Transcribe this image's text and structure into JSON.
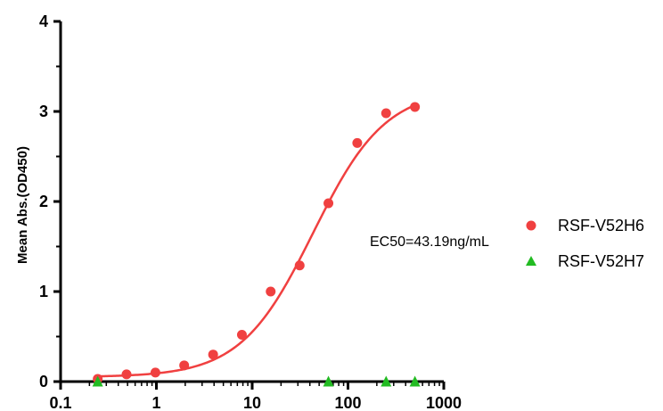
{
  "chart_data": {
    "type": "scatter",
    "xlabel": "",
    "ylabel": "Mean Abs.(OD450)",
    "xscale": "log",
    "xlim": [
      0.1,
      1000
    ],
    "ylim": [
      0,
      4
    ],
    "x_ticks": [
      "0.1",
      "1",
      "10",
      "100",
      "1000"
    ],
    "y_ticks": [
      "0",
      "1",
      "2",
      "3",
      "4"
    ],
    "annotation": "EC50=43.19ng/mL",
    "legend_position": "right",
    "series": [
      {
        "name": "RSF-V52H6",
        "marker": "circle",
        "color": "#f04040",
        "fit": "4PL",
        "x": [
          0.244,
          0.488,
          0.977,
          1.95,
          3.91,
          7.81,
          15.6,
          31.3,
          62.5,
          125,
          250,
          500
        ],
        "y": [
          0.03,
          0.08,
          0.1,
          0.18,
          0.3,
          0.52,
          1.0,
          1.29,
          1.98,
          2.65,
          2.98,
          3.05
        ]
      },
      {
        "name": "RSF-V52H7",
        "marker": "triangle",
        "color": "#22bb22",
        "x": [
          0.244,
          62.5,
          250,
          500
        ],
        "y": [
          0.0,
          0.0,
          0.0,
          0.0
        ]
      }
    ]
  }
}
